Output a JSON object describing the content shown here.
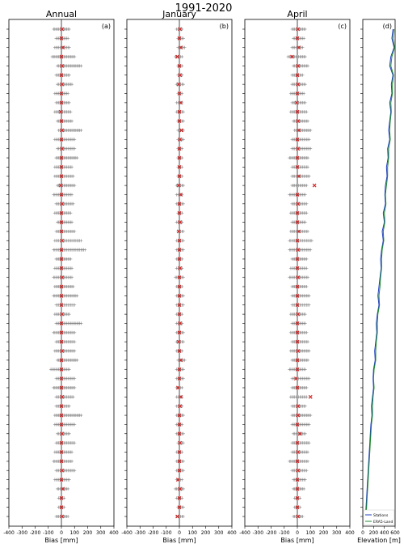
{
  "figure_title": "1991-2020",
  "chart_data": [
    {
      "type": "scatter",
      "title": "Annual",
      "panel_label": "(a)",
      "xlabel": "Bias [mm]",
      "ylabel": "",
      "xlim": [
        -400,
        400
      ],
      "xticks": [
        -400,
        -300,
        -200,
        -100,
        0,
        100,
        200,
        300,
        400
      ],
      "grid": false,
      "series": [
        {
          "name": "station_spread",
          "marker": "+",
          "color": "#808080",
          "band_low": [
            -60,
            -40,
            -50,
            -70,
            -30,
            -40,
            -30,
            -50,
            -40,
            -50,
            -30,
            -20,
            -50,
            -30,
            -40,
            -50,
            -50,
            -30,
            -60,
            -40,
            -50,
            -30,
            -40,
            -50,
            -60,
            -40,
            -50,
            -60,
            -50,
            -60,
            -40,
            -50,
            -40,
            -60,
            -40,
            -50,
            -30,
            -80,
            -40,
            -60,
            -40,
            -40,
            -50,
            -50,
            -30,
            -40,
            -50,
            -60,
            -40,
            -50,
            -30,
            -20,
            -20,
            -40
          ],
          "band_high": [
            60,
            50,
            60,
            100,
            150,
            60,
            80,
            50,
            60,
            70,
            80,
            150,
            100,
            100,
            120,
            80,
            90,
            100,
            80,
            90,
            70,
            80,
            100,
            150,
            180,
            70,
            80,
            80,
            90,
            120,
            100,
            60,
            150,
            100,
            100,
            100,
            120,
            60,
            100,
            100,
            90,
            60,
            150,
            100,
            60,
            100,
            80,
            80,
            100,
            60,
            50,
            20,
            20,
            50
          ]
        },
        {
          "name": "mean_bias",
          "marker": "x",
          "color": "#d62728",
          "values": [
            5,
            0,
            10,
            0,
            5,
            0,
            5,
            0,
            0,
            -5,
            0,
            5,
            0,
            5,
            0,
            0,
            0,
            -5,
            0,
            5,
            0,
            0,
            0,
            5,
            0,
            0,
            0,
            5,
            0,
            0,
            0,
            5,
            0,
            0,
            0,
            5,
            0,
            0,
            0,
            0,
            5,
            0,
            0,
            0,
            5,
            0,
            0,
            0,
            5,
            0,
            10,
            0,
            0,
            5
          ]
        }
      ]
    },
    {
      "type": "scatter",
      "title": "January",
      "panel_label": "(b)",
      "xlabel": "Bias [mm]",
      "ylabel": "",
      "xlim": [
        -400,
        400
      ],
      "xticks": [
        -400,
        -300,
        -200,
        -100,
        0,
        100,
        200,
        300,
        400
      ],
      "grid": false,
      "series": [
        {
          "name": "station_spread",
          "marker": "+",
          "color": "#808080",
          "band_low": [
            -20,
            -10,
            -10,
            -30,
            -10,
            -10,
            -20,
            -10,
            -20,
            -20,
            -10,
            -10,
            -10,
            -10,
            -10,
            -10,
            -10,
            -20,
            -20,
            -20,
            -10,
            -20,
            -10,
            -20,
            -20,
            -20,
            -20,
            -30,
            -20,
            -20,
            -20,
            -20,
            -20,
            -20,
            -20,
            -20,
            -10,
            -20,
            -20,
            -20,
            -20,
            -20,
            -20,
            -20,
            -20,
            -10,
            -20,
            -20,
            -20,
            -20,
            -30,
            -20,
            -10,
            -20
          ],
          "band_high": [
            20,
            30,
            40,
            20,
            20,
            20,
            30,
            20,
            20,
            30,
            30,
            30,
            30,
            20,
            20,
            20,
            20,
            30,
            20,
            30,
            20,
            20,
            30,
            30,
            30,
            20,
            20,
            30,
            20,
            30,
            30,
            20,
            20,
            30,
            30,
            20,
            40,
            30,
            30,
            20,
            20,
            20,
            30,
            20,
            30,
            30,
            20,
            30,
            30,
            20,
            30,
            20,
            30,
            30
          ]
        },
        {
          "name": "mean_bias",
          "marker": "x",
          "color": "#d62728",
          "values": [
            5,
            0,
            10,
            -15,
            0,
            5,
            -5,
            0,
            10,
            0,
            0,
            15,
            5,
            0,
            0,
            0,
            0,
            -5,
            10,
            0,
            0,
            5,
            -5,
            0,
            0,
            0,
            5,
            0,
            0,
            0,
            0,
            0,
            5,
            0,
            -5,
            0,
            10,
            0,
            0,
            -10,
            10,
            5,
            0,
            0,
            0,
            5,
            0,
            0,
            0,
            -10,
            5,
            0,
            0,
            -15
          ]
        }
      ]
    },
    {
      "type": "scatter",
      "title": "April",
      "panel_label": "(c)",
      "xlabel": "Bias [mm]",
      "ylabel": "",
      "xlim": [
        -400,
        400
      ],
      "xticks": [
        -400,
        -300,
        -200,
        -100,
        0,
        100,
        200,
        300,
        400
      ],
      "grid": false,
      "series": [
        {
          "name": "station_spread",
          "marker": "+",
          "color": "#808080",
          "band_low": [
            -40,
            -30,
            -40,
            -70,
            -30,
            -40,
            -40,
            -50,
            -40,
            -50,
            -30,
            -20,
            -40,
            -40,
            -60,
            -40,
            -40,
            -40,
            -60,
            -40,
            -50,
            -40,
            -50,
            -60,
            -60,
            -40,
            -50,
            -60,
            -40,
            -40,
            -40,
            -50,
            -40,
            -50,
            -40,
            -50,
            -40,
            -60,
            -40,
            -40,
            -50,
            -40,
            -40,
            -40,
            -30,
            -40,
            -40,
            -60,
            -40,
            -30,
            -30,
            -20,
            -20,
            -30
          ],
          "band_high": [
            60,
            50,
            40,
            60,
            80,
            40,
            60,
            50,
            60,
            70,
            80,
            100,
            90,
            100,
            80,
            80,
            90,
            70,
            60,
            70,
            70,
            60,
            80,
            110,
            100,
            70,
            70,
            80,
            70,
            90,
            90,
            60,
            60,
            70,
            80,
            90,
            80,
            60,
            90,
            70,
            70,
            60,
            100,
            90,
            60,
            90,
            80,
            80,
            70,
            60,
            50,
            20,
            20,
            40
          ]
        },
        {
          "name": "mean_bias",
          "marker": "x",
          "color": "#d62728",
          "values": [
            5,
            0,
            10,
            -40,
            5,
            0,
            5,
            0,
            -5,
            0,
            5,
            10,
            0,
            5,
            0,
            0,
            10,
            130,
            0,
            5,
            0,
            0,
            10,
            0,
            5,
            0,
            0,
            5,
            0,
            0,
            0,
            5,
            0,
            0,
            0,
            5,
            0,
            0,
            -10,
            0,
            100,
            5,
            5,
            0,
            20,
            0,
            5,
            0,
            5,
            0,
            0,
            0,
            0,
            5
          ]
        }
      ]
    },
    {
      "type": "line",
      "title": "",
      "panel_label": "(d)",
      "xlabel": "Elevation [m]",
      "ylabel": "",
      "xlim": [
        0,
        600
      ],
      "xticks": [
        0,
        200,
        400,
        600
      ],
      "grid": false,
      "legend": "bottom-right",
      "series": [
        {
          "name": "Stations",
          "color": "#1f3fbf",
          "values": [
            560,
            540,
            580,
            520,
            500,
            560,
            530,
            540,
            500,
            520,
            500,
            480,
            500,
            460,
            470,
            440,
            450,
            420,
            410,
            420,
            380,
            400,
            360,
            380,
            350,
            330,
            340,
            320,
            300,
            280,
            300,
            270,
            250,
            260,
            240,
            220,
            230,
            200,
            190,
            200,
            180,
            160,
            170,
            150,
            140,
            130,
            120,
            110,
            100,
            90,
            80,
            70,
            60,
            50
          ]
        },
        {
          "name": "ERA5-Land",
          "color": "#1e8a2e",
          "values": [
            580,
            560,
            590,
            540,
            520,
            570,
            550,
            550,
            520,
            530,
            510,
            500,
            510,
            480,
            480,
            460,
            460,
            440,
            420,
            430,
            400,
            410,
            380,
            390,
            360,
            350,
            350,
            330,
            320,
            300,
            310,
            280,
            270,
            270,
            250,
            240,
            240,
            210,
            200,
            210,
            190,
            180,
            180,
            160,
            150,
            140,
            130,
            120,
            110,
            100,
            90,
            80,
            70,
            60
          ]
        }
      ]
    }
  ]
}
